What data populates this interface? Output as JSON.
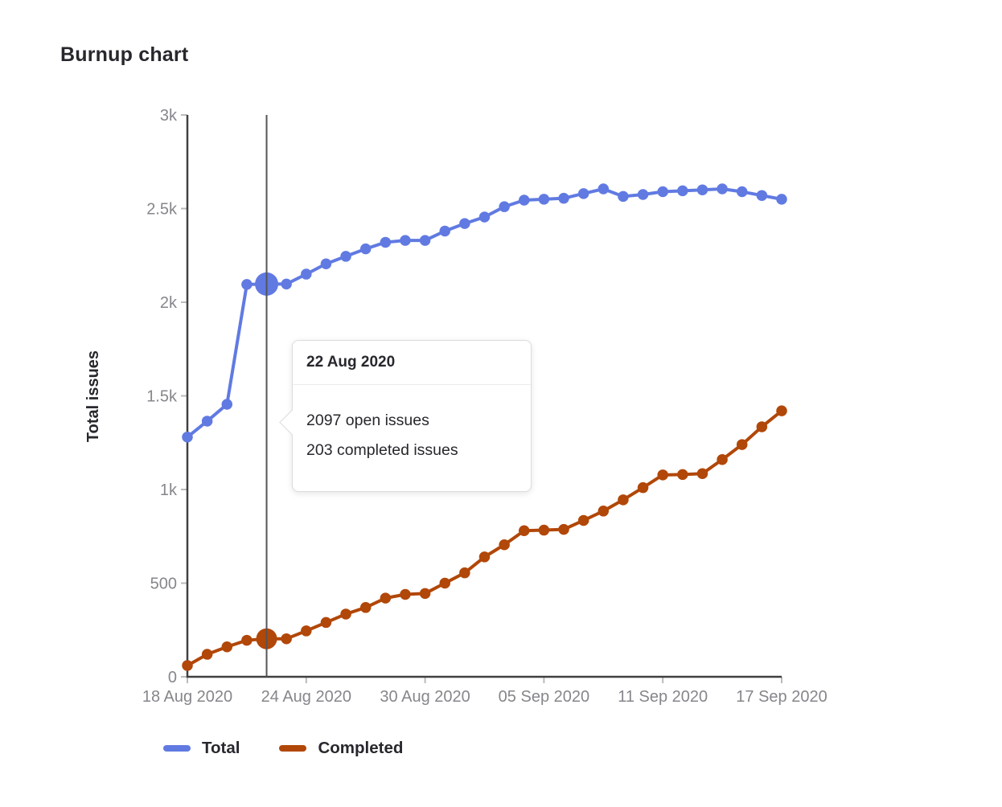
{
  "colors": {
    "total": "#617ae2",
    "completed": "#b14708",
    "axis": "#404040",
    "tick_mark": "#bbbbbb",
    "tick_label": "#86868c",
    "hover_line": "#54545a",
    "text_dark": "#28272d"
  },
  "chart_data": {
    "type": "line",
    "title": "Burnup chart",
    "xlabel": "",
    "ylabel": "Total issues",
    "ylim": [
      0,
      3000
    ],
    "grid": false,
    "legend_position": "bottom-left",
    "y_ticks": [
      {
        "value": 0,
        "label": "0"
      },
      {
        "value": 500,
        "label": "500"
      },
      {
        "value": 1000,
        "label": "1k"
      },
      {
        "value": 1500,
        "label": "1.5k"
      },
      {
        "value": 2000,
        "label": "2k"
      },
      {
        "value": 2500,
        "label": "2.5k"
      },
      {
        "value": 3000,
        "label": "3k"
      }
    ],
    "x_ticks": [
      {
        "index": 0,
        "label": "18 Aug 2020"
      },
      {
        "index": 6,
        "label": "24 Aug 2020"
      },
      {
        "index": 12,
        "label": "30 Aug 2020"
      },
      {
        "index": 18,
        "label": "05 Sep 2020"
      },
      {
        "index": 24,
        "label": "11 Sep 2020"
      },
      {
        "index": 30,
        "label": "17 Sep 2020"
      }
    ],
    "dates": [
      "18 Aug 2020",
      "19 Aug 2020",
      "20 Aug 2020",
      "21 Aug 2020",
      "22 Aug 2020",
      "23 Aug 2020",
      "24 Aug 2020",
      "25 Aug 2020",
      "26 Aug 2020",
      "27 Aug 2020",
      "28 Aug 2020",
      "29 Aug 2020",
      "30 Aug 2020",
      "31 Aug 2020",
      "01 Sep 2020",
      "02 Sep 2020",
      "03 Sep 2020",
      "04 Sep 2020",
      "05 Sep 2020",
      "06 Sep 2020",
      "07 Sep 2020",
      "08 Sep 2020",
      "09 Sep 2020",
      "10 Sep 2020",
      "11 Sep 2020",
      "12 Sep 2020",
      "13 Sep 2020",
      "14 Sep 2020",
      "15 Sep 2020",
      "16 Sep 2020",
      "17 Sep 2020"
    ],
    "series": [
      {
        "name": "Total",
        "color": "#617ae2",
        "values": [
          1280,
          1365,
          1455,
          2095,
          2097,
          2097,
          2150,
          2205,
          2245,
          2285,
          2320,
          2330,
          2330,
          2380,
          2420,
          2455,
          2510,
          2545,
          2550,
          2555,
          2580,
          2605,
          2565,
          2575,
          2590,
          2595,
          2600,
          2605,
          2590,
          2570,
          2550
        ]
      },
      {
        "name": "Completed",
        "color": "#b14708",
        "values": [
          60,
          120,
          160,
          195,
          203,
          203,
          245,
          290,
          335,
          370,
          420,
          440,
          445,
          500,
          555,
          640,
          705,
          780,
          783,
          787,
          835,
          885,
          945,
          1010,
          1078,
          1080,
          1085,
          1160,
          1240,
          1335,
          1420
        ]
      }
    ],
    "highlight": {
      "index": 4,
      "date": "22 Aug 2020"
    }
  },
  "tooltip": {
    "title": "22 Aug 2020",
    "lines": [
      "2097 open issues",
      "203 completed issues"
    ]
  }
}
